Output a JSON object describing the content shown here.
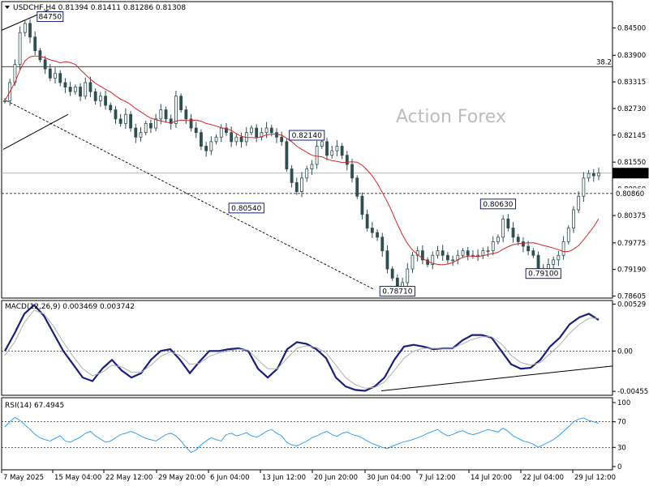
{
  "colors": {
    "candle": "#2f4f4f",
    "ma": "#d62728",
    "macd_main": "#1a1f7a",
    "macd_signal": "#b0b0b0",
    "rsi": "#2196f3",
    "guide": "#000000",
    "price_box": "#1a1f7a"
  },
  "chart_data": [
    {
      "type": "candlestick",
      "panel": "price",
      "title": "USDCHF,H4",
      "ohlc_readout": [
        "0.81394",
        "0.81411",
        "0.81286",
        "0.81308"
      ],
      "watermark": "Action Forex",
      "ylim": [
        0.7856,
        0.8508
      ],
      "y_ticks": [
        "0.84500",
        "0.83900",
        "0.83315",
        "0.82730",
        "0.82145",
        "0.81550",
        "0.80960",
        "0.80375",
        "0.79775",
        "0.79190",
        "0.78605"
      ],
      "current_price": "0.81308",
      "support_label": "0.80860",
      "hline": {
        "value": 0.8365,
        "label": "38.2"
      },
      "dashed_level": 0.8086,
      "x_ticks": [
        "7 May 2025",
        "15 May 04:00",
        "22 May 12:00",
        "29 May 20:00",
        "6 Jun 04:00",
        "13 Jun 12:00",
        "20 Jun 20:00",
        "30 Jun 04:00",
        "7 Jul 12:00",
        "14 Jul 20:00",
        "22 Jul 04:00",
        "29 Jul 12:00"
      ],
      "annotations": [
        {
          "text": "84750",
          "x": 9,
          "y": 0.8475
        },
        {
          "text": "0.82140",
          "x": 60,
          "y": 0.8214
        },
        {
          "text": "0.80540",
          "x": 48,
          "y": 0.8054
        },
        {
          "text": "0.80630",
          "x": 98,
          "y": 0.8063
        },
        {
          "text": "0.79100",
          "x": 107,
          "y": 0.791
        },
        {
          "text": "0.78710",
          "x": 78,
          "y": 0.7871
        }
      ],
      "close": [
        0.829,
        0.833,
        0.837,
        0.844,
        0.846,
        0.843,
        0.84,
        0.838,
        0.836,
        0.834,
        0.835,
        0.833,
        0.832,
        0.831,
        0.832,
        0.83,
        0.833,
        0.831,
        0.829,
        0.83,
        0.828,
        0.827,
        0.825,
        0.824,
        0.826,
        0.823,
        0.821,
        0.822,
        0.824,
        0.823,
        0.825,
        0.827,
        0.825,
        0.824,
        0.83,
        0.827,
        0.825,
        0.823,
        0.822,
        0.819,
        0.818,
        0.82,
        0.821,
        0.823,
        0.822,
        0.82,
        0.821,
        0.82,
        0.822,
        0.823,
        0.821,
        0.822,
        0.823,
        0.822,
        0.821,
        0.82,
        0.814,
        0.811,
        0.809,
        0.812,
        0.814,
        0.815,
        0.819,
        0.82,
        0.817,
        0.818,
        0.819,
        0.817,
        0.815,
        0.812,
        0.808,
        0.804,
        0.801,
        0.8,
        0.799,
        0.796,
        0.792,
        0.79,
        0.788,
        0.789,
        0.792,
        0.795,
        0.796,
        0.794,
        0.793,
        0.795,
        0.796,
        0.795,
        0.794,
        0.794,
        0.795,
        0.796,
        0.795,
        0.795,
        0.795,
        0.796,
        0.796,
        0.798,
        0.799,
        0.803,
        0.801,
        0.799,
        0.798,
        0.797,
        0.796,
        0.795,
        0.792,
        0.792,
        0.793,
        0.794,
        0.795,
        0.798,
        0.801,
        0.805,
        0.808,
        0.812,
        0.813,
        0.8125,
        0.8131
      ]
    },
    {
      "type": "line",
      "panel": "macd",
      "title": "MACD(12,26,9) 0.003469 0.003742",
      "ylim": [
        -0.005,
        0.0057
      ],
      "y_ticks": [
        "0.00529",
        "0.00",
        "-0.004557"
      ],
      "series": [
        {
          "role": "main",
          "values": [
            0.0,
            0.002,
            0.0042,
            0.0052,
            0.004,
            0.002,
            0.0,
            -0.0015,
            -0.003,
            -0.0034,
            -0.002,
            -0.001,
            -0.0022,
            -0.003,
            -0.0025,
            -0.001,
            0.0,
            0.0002,
            -0.001,
            -0.0025,
            -0.0012,
            0.0,
            0.0,
            0.0002,
            0.0003,
            0.0,
            -0.002,
            -0.003,
            -0.002,
            0.0002,
            0.001,
            0.0008,
            0.0002,
            -0.0008,
            -0.003,
            -0.004,
            -0.0044,
            -0.0045,
            -0.004,
            -0.003,
            -0.001,
            0.0005,
            0.0007,
            0.0005,
            0.0002,
            0.0003,
            0.0003,
            0.0012,
            0.0018,
            0.0018,
            0.0015,
            0.0,
            -0.0015,
            -0.002,
            -0.0019,
            -0.001,
            0.0005,
            0.0015,
            0.003,
            0.0038,
            0.0042,
            0.0035
          ]
        },
        {
          "role": "signal",
          "values": [
            -0.0005,
            0.001,
            0.0032,
            0.0046,
            0.0042,
            0.0028,
            0.001,
            -0.0006,
            -0.002,
            -0.0028,
            -0.0024,
            -0.0016,
            -0.0018,
            -0.0024,
            -0.0024,
            -0.0016,
            -0.0006,
            -0.0001,
            -0.0005,
            -0.0015,
            -0.0014,
            -0.0006,
            -0.0002,
            0.0,
            0.0002,
            0.0001,
            -0.001,
            -0.002,
            -0.002,
            -0.0008,
            0.0003,
            0.0006,
            0.0004,
            -0.0002,
            -0.0016,
            -0.003,
            -0.0038,
            -0.0042,
            -0.0041,
            -0.0035,
            -0.0022,
            -0.0008,
            0.0,
            0.0003,
            0.0003,
            0.0003,
            0.0003,
            0.0008,
            0.0013,
            0.0016,
            0.0016,
            0.0008,
            -0.0005,
            -0.0013,
            -0.0016,
            -0.0013,
            -0.0003,
            0.0007,
            0.002,
            0.003,
            0.0037,
            0.0037
          ]
        }
      ]
    },
    {
      "type": "line",
      "panel": "rsi",
      "title": "RSI(14) 67.4945",
      "ylim": [
        0,
        100
      ],
      "y_ticks": [
        "100",
        "70",
        "30",
        "0"
      ],
      "levels": [
        70,
        30
      ],
      "series": [
        {
          "role": "rsi",
          "values": [
            62,
            70,
            77,
            72,
            65,
            58,
            50,
            45,
            42,
            40,
            44,
            48,
            40,
            38,
            42,
            46,
            52,
            55,
            48,
            43,
            38,
            40,
            45,
            50,
            52,
            55,
            52,
            48,
            44,
            42,
            40,
            45,
            50,
            52,
            48,
            40,
            30,
            22,
            26,
            34,
            40,
            45,
            42,
            40,
            50,
            52,
            48,
            50,
            53,
            48,
            46,
            50,
            55,
            58,
            52,
            48,
            38,
            34,
            32,
            36,
            40,
            45,
            48,
            52,
            55,
            50,
            47,
            52,
            54,
            50,
            48,
            45,
            40,
            36,
            33,
            30,
            28,
            32,
            35,
            38,
            40,
            42,
            45,
            48,
            52,
            55,
            58,
            52,
            48,
            50,
            54,
            56,
            52,
            50,
            52,
            55,
            58,
            56,
            54,
            60,
            55,
            48,
            44,
            40,
            38,
            35,
            30,
            34,
            38,
            42,
            48,
            55,
            62,
            70,
            74,
            76,
            72,
            70,
            67.5
          ]
        }
      ]
    }
  ]
}
